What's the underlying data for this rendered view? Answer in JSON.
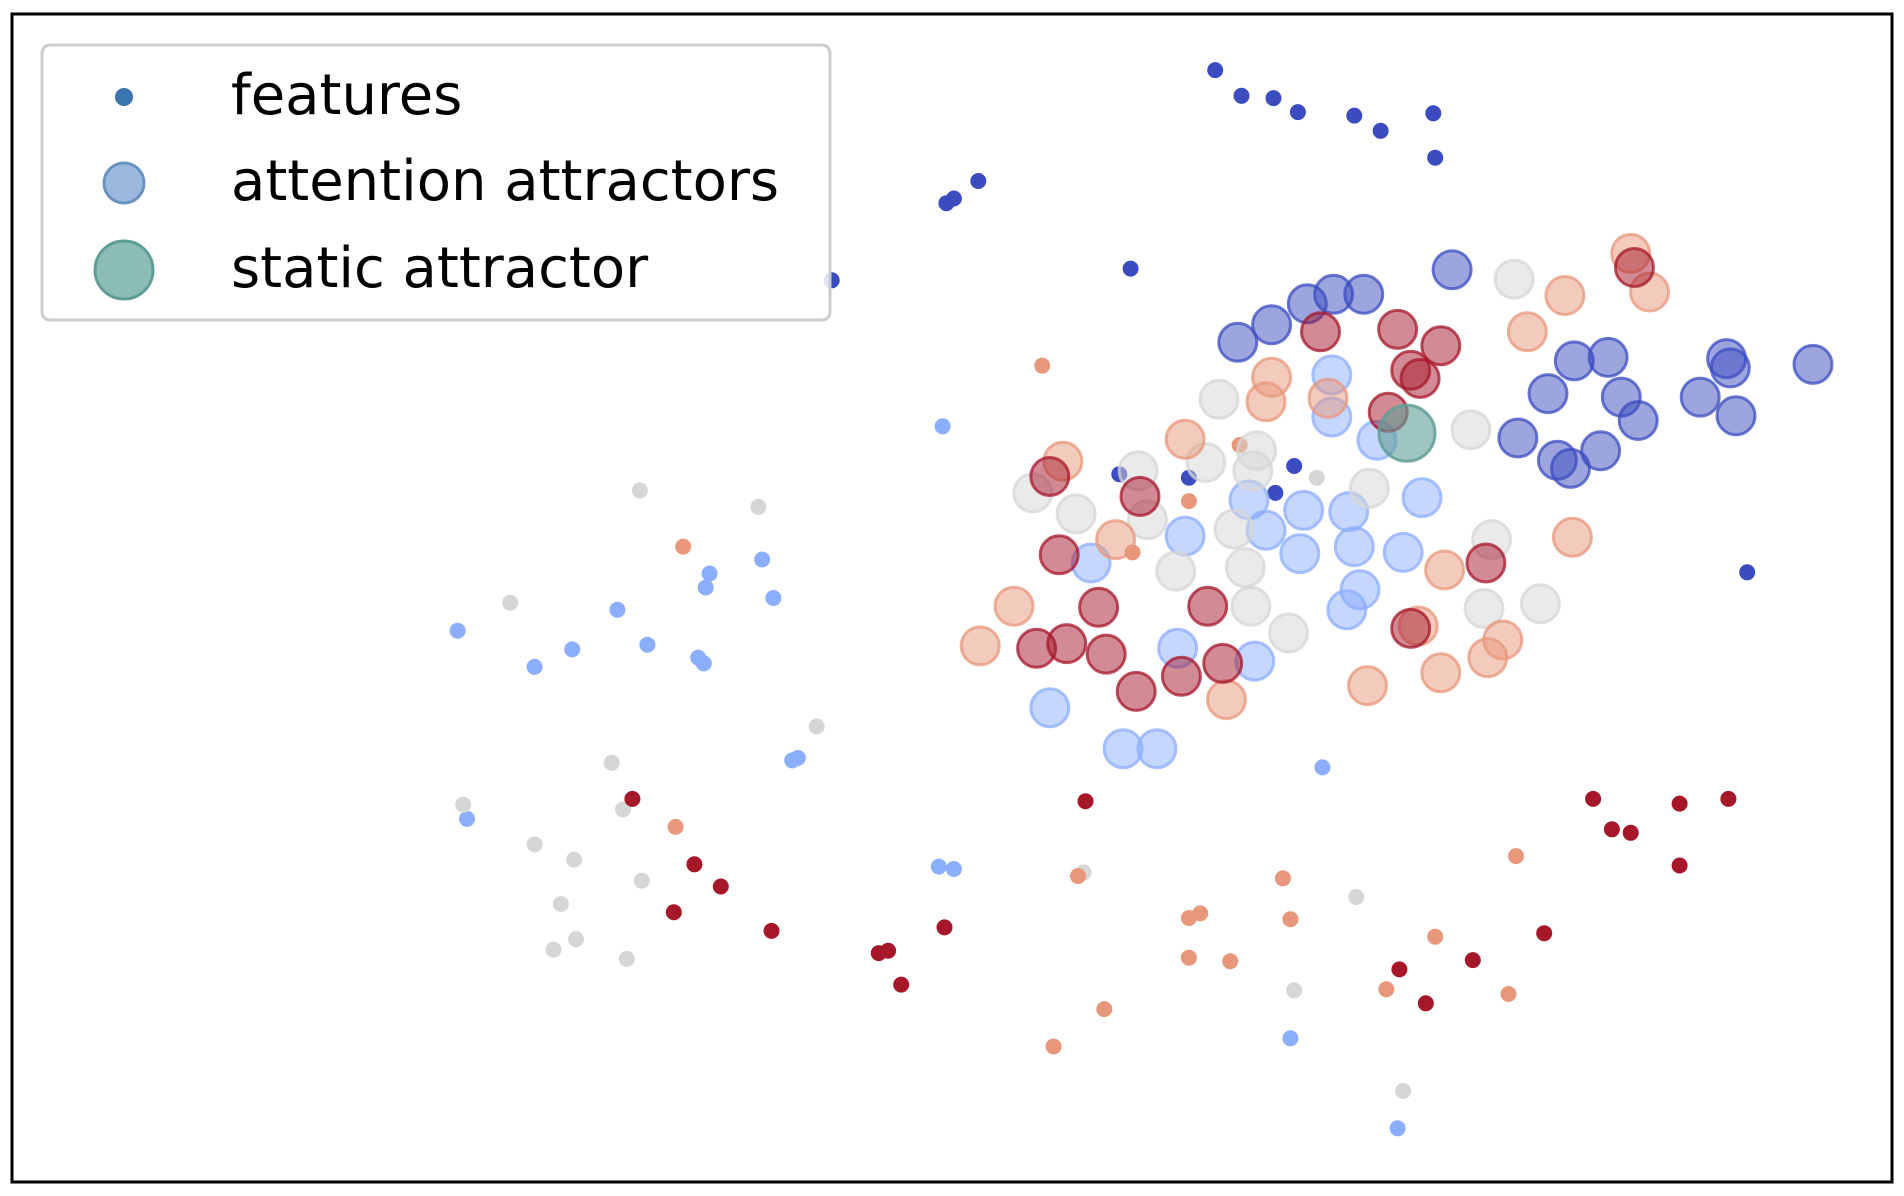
{
  "chart_data": {
    "type": "scatter",
    "title": "",
    "xlabel": "",
    "ylabel": "",
    "xlim": [
      0,
      100
    ],
    "ylim": [
      0,
      100
    ],
    "grid": false,
    "axes_ticks": false,
    "legend": {
      "placement": "top-left",
      "entries": [
        {
          "label": "features",
          "marker": "small-dot",
          "color": "#3a75ad"
        },
        {
          "label": "attention attractors",
          "marker": "medium-circle",
          "color": "#8fb1d8"
        },
        {
          "label": "static attractor",
          "marker": "large-circle",
          "color": "#7fb5ae"
        }
      ]
    },
    "colors": {
      "c0": "#3b4cc0",
      "c1": "#8caeff",
      "c2": "#d6d6d6",
      "c3": "#e8977b",
      "c4": "#a6172a",
      "static": "#5f9e96"
    },
    "series": [
      {
        "name": "features",
        "points": [
          [
            64.0,
            95.2,
            "c0"
          ],
          [
            65.4,
            93.0,
            "c0"
          ],
          [
            67.1,
            92.8,
            "c0"
          ],
          [
            68.4,
            91.6,
            "c0"
          ],
          [
            71.4,
            91.3,
            "c0"
          ],
          [
            72.8,
            90.0,
            "c0"
          ],
          [
            75.6,
            91.5,
            "c0"
          ],
          [
            75.7,
            87.7,
            "c0"
          ],
          [
            49.7,
            83.8,
            "c0"
          ],
          [
            50.1,
            84.2,
            "c0"
          ],
          [
            51.4,
            85.7,
            "c0"
          ],
          [
            43.6,
            77.2,
            "c0"
          ],
          [
            59.5,
            78.2,
            "c0"
          ],
          [
            58.9,
            60.6,
            "c0"
          ],
          [
            62.6,
            60.3,
            "c0"
          ],
          [
            68.2,
            61.3,
            "c0"
          ],
          [
            67.2,
            59.0,
            "c0"
          ],
          [
            92.3,
            52.2,
            "c0"
          ],
          [
            49.5,
            64.7,
            "c1"
          ],
          [
            23.7,
            47.2,
            "c1"
          ],
          [
            27.8,
            44.1,
            "c1"
          ],
          [
            29.8,
            45.6,
            "c1"
          ],
          [
            32.2,
            49.0,
            "c1"
          ],
          [
            33.8,
            46.0,
            "c1"
          ],
          [
            36.5,
            44.9,
            "c1"
          ],
          [
            36.8,
            44.4,
            "c1"
          ],
          [
            36.9,
            50.9,
            "c1"
          ],
          [
            37.1,
            52.1,
            "c1"
          ],
          [
            39.9,
            53.3,
            "c1"
          ],
          [
            40.5,
            50.0,
            "c1"
          ],
          [
            41.5,
            36.1,
            "c1"
          ],
          [
            41.8,
            36.3,
            "c1"
          ],
          [
            24.2,
            31.1,
            "c1"
          ],
          [
            49.3,
            27.0,
            "c1"
          ],
          [
            50.1,
            26.8,
            "c1"
          ],
          [
            69.7,
            35.5,
            "c1"
          ],
          [
            68.0,
            12.3,
            "c1"
          ],
          [
            73.7,
            4.6,
            "c1"
          ],
          [
            33.4,
            59.2,
            "c2"
          ],
          [
            39.7,
            57.8,
            "c2"
          ],
          [
            26.5,
            49.6,
            "c2"
          ],
          [
            42.8,
            39.0,
            "c2"
          ],
          [
            31.9,
            35.9,
            "c2"
          ],
          [
            24.0,
            32.3,
            "c2"
          ],
          [
            32.5,
            31.9,
            "c2"
          ],
          [
            27.8,
            28.9,
            "c2"
          ],
          [
            29.9,
            27.6,
            "c2"
          ],
          [
            33.5,
            25.8,
            "c2"
          ],
          [
            29.2,
            23.8,
            "c2"
          ],
          [
            30.0,
            20.8,
            "c2"
          ],
          [
            28.8,
            19.9,
            "c2"
          ],
          [
            32.7,
            19.1,
            "c2"
          ],
          [
            57.0,
            26.5,
            "c2"
          ],
          [
            71.5,
            24.4,
            "c2"
          ],
          [
            68.2,
            16.4,
            "c2"
          ],
          [
            74.0,
            7.8,
            "c2"
          ],
          [
            69.4,
            60.3,
            "c2"
          ],
          [
            54.8,
            69.9,
            "c3"
          ],
          [
            65.3,
            63.1,
            "c3"
          ],
          [
            62.6,
            58.3,
            "c3"
          ],
          [
            59.6,
            53.9,
            "c3"
          ],
          [
            35.7,
            54.4,
            "c3"
          ],
          [
            35.3,
            30.4,
            "c3"
          ],
          [
            56.7,
            26.2,
            "c3"
          ],
          [
            63.2,
            23.0,
            "c3"
          ],
          [
            62.6,
            22.6,
            "c3"
          ],
          [
            67.6,
            26.0,
            "c3"
          ],
          [
            68.0,
            22.5,
            "c3"
          ],
          [
            62.6,
            19.2,
            "c3"
          ],
          [
            64.8,
            18.9,
            "c3"
          ],
          [
            75.7,
            21.0,
            "c3"
          ],
          [
            80.0,
            27.9,
            "c3"
          ],
          [
            73.1,
            16.5,
            "c3"
          ],
          [
            79.6,
            16.1,
            "c3"
          ],
          [
            58.1,
            14.8,
            "c3"
          ],
          [
            55.4,
            11.6,
            "c3"
          ],
          [
            33.0,
            32.8,
            "c4"
          ],
          [
            36.3,
            27.2,
            "c4"
          ],
          [
            37.7,
            25.3,
            "c4"
          ],
          [
            35.2,
            23.1,
            "c4"
          ],
          [
            40.4,
            21.5,
            "c4"
          ],
          [
            46.1,
            19.6,
            "c4"
          ],
          [
            46.6,
            19.8,
            "c4"
          ],
          [
            49.6,
            21.8,
            "c4"
          ],
          [
            47.3,
            16.9,
            "c4"
          ],
          [
            57.1,
            32.6,
            "c4"
          ],
          [
            84.1,
            32.8,
            "c4"
          ],
          [
            85.1,
            30.2,
            "c4"
          ],
          [
            86.1,
            29.9,
            "c4"
          ],
          [
            88.7,
            32.4,
            "c4"
          ],
          [
            91.3,
            32.8,
            "c4"
          ],
          [
            88.7,
            27.1,
            "c4"
          ],
          [
            81.5,
            21.3,
            "c4"
          ],
          [
            77.7,
            19.0,
            "c4"
          ],
          [
            73.8,
            18.2,
            "c4"
          ],
          [
            75.2,
            15.3,
            "c4"
          ]
        ]
      },
      {
        "name": "attention attractors",
        "points": [
          [
            76.6,
            78.1,
            "c0"
          ],
          [
            70.3,
            76.0,
            "c0"
          ],
          [
            71.9,
            76.0,
            "c0"
          ],
          [
            68.9,
            75.2,
            "c0"
          ],
          [
            67.0,
            73.4,
            "c0"
          ],
          [
            65.2,
            71.9,
            "c0"
          ],
          [
            83.1,
            70.3,
            "c0"
          ],
          [
            84.9,
            70.6,
            "c0"
          ],
          [
            81.7,
            67.5,
            "c0"
          ],
          [
            85.6,
            67.2,
            "c0"
          ],
          [
            89.8,
            67.2,
            "c0"
          ],
          [
            95.8,
            70.0,
            "c0"
          ],
          [
            91.2,
            70.5,
            "c0"
          ],
          [
            91.4,
            69.7,
            "c0"
          ],
          [
            86.5,
            65.2,
            "c0"
          ],
          [
            91.7,
            65.6,
            "c0"
          ],
          [
            80.1,
            63.7,
            "c0"
          ],
          [
            82.2,
            61.8,
            "c0"
          ],
          [
            84.5,
            62.6,
            "c0"
          ],
          [
            82.9,
            61.1,
            "c0"
          ],
          [
            70.2,
            69.1,
            "c1"
          ],
          [
            70.2,
            65.5,
            "c1"
          ],
          [
            72.6,
            63.5,
            "c1"
          ],
          [
            65.8,
            58.4,
            "c1"
          ],
          [
            68.7,
            57.5,
            "c1"
          ],
          [
            71.1,
            57.4,
            "c1"
          ],
          [
            75.0,
            58.6,
            "c1"
          ],
          [
            66.7,
            55.8,
            "c1"
          ],
          [
            71.4,
            54.4,
            "c1"
          ],
          [
            68.5,
            53.8,
            "c1"
          ],
          [
            74.0,
            53.9,
            "c1"
          ],
          [
            62.4,
            55.3,
            "c1"
          ],
          [
            57.4,
            53.0,
            "c1"
          ],
          [
            71.7,
            50.7,
            "c1"
          ],
          [
            71.0,
            49.0,
            "c1"
          ],
          [
            62.0,
            45.7,
            "c1"
          ],
          [
            66.1,
            44.6,
            "c1"
          ],
          [
            55.2,
            40.6,
            "c1"
          ],
          [
            59.1,
            37.1,
            "c1"
          ],
          [
            60.9,
            37.1,
            "c1"
          ],
          [
            79.9,
            77.3,
            "c2"
          ],
          [
            64.2,
            67.0,
            "c2"
          ],
          [
            77.6,
            64.4,
            "c2"
          ],
          [
            59.9,
            60.9,
            "c2"
          ],
          [
            63.5,
            61.6,
            "c2"
          ],
          [
            66.2,
            62.6,
            "c2"
          ],
          [
            66.0,
            60.9,
            "c2"
          ],
          [
            54.3,
            59.0,
            "c2"
          ],
          [
            72.2,
            59.4,
            "c2"
          ],
          [
            56.6,
            57.2,
            "c2"
          ],
          [
            60.4,
            56.7,
            "c2"
          ],
          [
            65.0,
            55.9,
            "c2"
          ],
          [
            78.7,
            55.0,
            "c2"
          ],
          [
            61.9,
            52.3,
            "c2"
          ],
          [
            65.6,
            52.6,
            "c2"
          ],
          [
            78.3,
            49.1,
            "c2"
          ],
          [
            81.3,
            49.5,
            "c2"
          ],
          [
            65.9,
            49.3,
            "c2"
          ],
          [
            67.9,
            47.0,
            "c2"
          ],
          [
            86.1,
            79.5,
            "c3"
          ],
          [
            87.1,
            76.2,
            "c3"
          ],
          [
            82.6,
            75.9,
            "c3"
          ],
          [
            80.6,
            72.8,
            "c3"
          ],
          [
            67.0,
            68.9,
            "c3"
          ],
          [
            70.0,
            67.1,
            "c3"
          ],
          [
            66.7,
            66.8,
            "c3"
          ],
          [
            62.4,
            63.6,
            "c3"
          ],
          [
            55.9,
            61.7,
            "c3"
          ],
          [
            83.0,
            55.2,
            "c3"
          ],
          [
            58.7,
            55.0,
            "c3"
          ],
          [
            76.2,
            52.4,
            "c3"
          ],
          [
            53.3,
            49.3,
            "c3"
          ],
          [
            74.8,
            47.6,
            "c3"
          ],
          [
            79.3,
            46.4,
            "c3"
          ],
          [
            51.5,
            45.9,
            "c3"
          ],
          [
            78.5,
            44.9,
            "c3"
          ],
          [
            76.0,
            43.6,
            "c3"
          ],
          [
            72.1,
            42.5,
            "c3"
          ],
          [
            64.6,
            41.3,
            "c3"
          ],
          [
            86.3,
            78.3,
            "c4"
          ],
          [
            69.6,
            72.8,
            "c4"
          ],
          [
            73.7,
            73.0,
            "c4"
          ],
          [
            76.0,
            71.6,
            "c4"
          ],
          [
            74.4,
            69.5,
            "c4"
          ],
          [
            74.9,
            68.8,
            "c4"
          ],
          [
            73.2,
            65.9,
            "c4"
          ],
          [
            55.2,
            60.4,
            "c4"
          ],
          [
            60.0,
            58.7,
            "c4"
          ],
          [
            55.7,
            53.7,
            "c4"
          ],
          [
            78.4,
            53.0,
            "c4"
          ],
          [
            57.8,
            49.2,
            "c4"
          ],
          [
            63.6,
            49.3,
            "c4"
          ],
          [
            74.4,
            47.4,
            "c4"
          ],
          [
            56.1,
            46.1,
            "c4"
          ],
          [
            58.2,
            45.2,
            "c4"
          ],
          [
            54.5,
            45.7,
            "c4"
          ],
          [
            64.4,
            44.4,
            "c4"
          ],
          [
            62.2,
            43.3,
            "c4"
          ],
          [
            59.8,
            42.0,
            "c4"
          ]
        ]
      },
      {
        "name": "static attractor",
        "points": [
          [
            74.2,
            64.1,
            "static"
          ]
        ]
      }
    ]
  }
}
